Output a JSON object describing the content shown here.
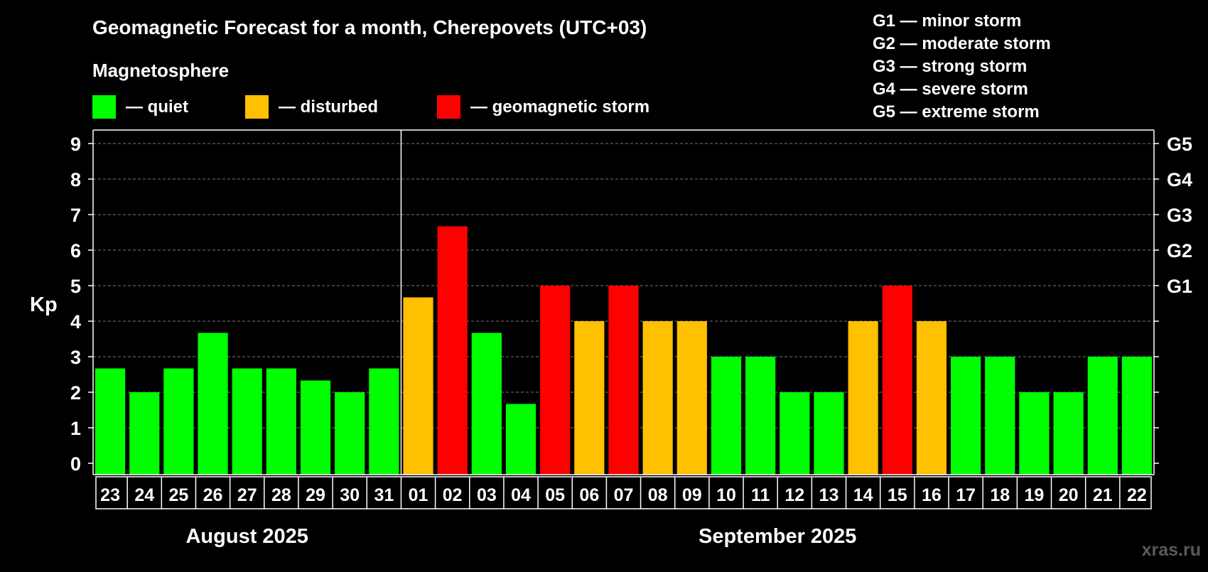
{
  "chart_data": {
    "type": "bar",
    "title": "Geomagnetic Forecast for a month, Cherepovets (UTC+03)",
    "subtitle": "Magnetosphere",
    "ylabel": "Kp",
    "ylim": [
      0,
      9
    ],
    "yticks": [
      "0",
      "1",
      "2",
      "3",
      "4",
      "5",
      "6",
      "7",
      "8",
      "9"
    ],
    "right_axis_labels": [
      {
        "kp": 5,
        "label": "G1"
      },
      {
        "kp": 6,
        "label": "G2"
      },
      {
        "kp": 7,
        "label": "G3"
      },
      {
        "kp": 8,
        "label": "G4"
      },
      {
        "kp": 9,
        "label": "G5"
      }
    ],
    "legend": [
      {
        "key": "quiet",
        "label": "— quiet",
        "color": "#00ff00"
      },
      {
        "key": "disturbed",
        "label": "— disturbed",
        "color": "#ffc000"
      },
      {
        "key": "storm",
        "label": "— geomagnetic storm",
        "color": "#ff0000"
      }
    ],
    "storm_scale": [
      "G1 — minor storm",
      "G2 — moderate storm",
      "G3 — strong storm",
      "G4 — severe storm",
      "G5 — extreme storm"
    ],
    "categories": [
      "23",
      "24",
      "25",
      "26",
      "27",
      "28",
      "29",
      "30",
      "31",
      "01",
      "02",
      "03",
      "04",
      "05",
      "06",
      "07",
      "08",
      "09",
      "10",
      "11",
      "12",
      "13",
      "14",
      "15",
      "16",
      "17",
      "18",
      "19",
      "20",
      "21",
      "22"
    ],
    "values": [
      2.67,
      2.0,
      2.67,
      3.67,
      2.67,
      2.67,
      2.33,
      2.0,
      2.67,
      4.67,
      6.67,
      3.67,
      1.67,
      5.0,
      4.0,
      5.0,
      4.0,
      4.0,
      3.0,
      3.0,
      2.0,
      2.0,
      4.0,
      5.0,
      4.0,
      3.0,
      3.0,
      2.0,
      2.0,
      3.0,
      3.0
    ],
    "levels": [
      "quiet",
      "quiet",
      "quiet",
      "quiet",
      "quiet",
      "quiet",
      "quiet",
      "quiet",
      "quiet",
      "disturbed",
      "storm",
      "quiet",
      "quiet",
      "storm",
      "disturbed",
      "storm",
      "disturbed",
      "disturbed",
      "quiet",
      "quiet",
      "quiet",
      "quiet",
      "disturbed",
      "storm",
      "disturbed",
      "quiet",
      "quiet",
      "quiet",
      "quiet",
      "quiet",
      "quiet"
    ],
    "months": [
      {
        "label": "August 2025",
        "start": 0,
        "count": 9
      },
      {
        "label": "September 2025",
        "start": 9,
        "count": 22
      }
    ],
    "grid": true
  },
  "watermark": "xras.ru"
}
